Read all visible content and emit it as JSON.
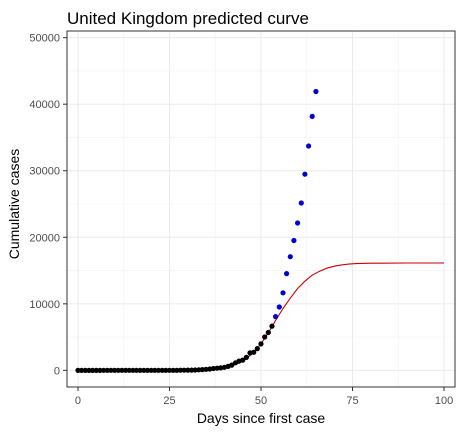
{
  "chart_data": {
    "type": "scatter",
    "title": "United Kingdom predicted curve",
    "xlabel": "Days since first case",
    "ylabel": "Cumulative cases",
    "xlim": [
      -3,
      103
    ],
    "ylim": [
      -2500,
      51000
    ],
    "x_ticks": [
      0,
      25,
      50,
      75,
      100
    ],
    "x_tick_labels": [
      "0",
      "25",
      "50",
      "75",
      "100"
    ],
    "y_ticks": [
      0,
      10000,
      20000,
      30000,
      40000,
      50000
    ],
    "y_tick_labels": [
      "0",
      "10000",
      "20000",
      "30000",
      "40000",
      "50000"
    ],
    "grid": true,
    "legend": "none",
    "series": [
      {
        "role": "observed",
        "color": "#000000",
        "x": [
          0,
          1,
          2,
          3,
          4,
          5,
          6,
          7,
          8,
          9,
          10,
          11,
          12,
          13,
          14,
          15,
          16,
          17,
          18,
          19,
          20,
          21,
          22,
          23,
          24,
          25,
          26,
          27,
          28,
          29,
          30,
          31,
          32,
          33,
          34,
          35,
          36,
          37,
          38,
          39,
          40,
          41,
          42,
          43,
          44,
          45,
          46,
          47,
          48,
          49,
          50,
          51,
          52,
          53
        ],
        "y": [
          2,
          2,
          2,
          2,
          2,
          2,
          2,
          3,
          3,
          3,
          3,
          8,
          8,
          9,
          9,
          9,
          9,
          9,
          9,
          9,
          9,
          9,
          9,
          9,
          13,
          13,
          13,
          15,
          20,
          23,
          36,
          40,
          51,
          85,
          115,
          163,
          206,
          273,
          321,
          373,
          456,
          590,
          798,
          1140,
          1391,
          1543,
          1950,
          2630,
          2716,
          3277,
          3983,
          5018,
          5683,
          6650
        ]
      },
      {
        "role": "predicted",
        "color": "#0000cc",
        "x": [
          54,
          55,
          56,
          57,
          58,
          59,
          60,
          61,
          62,
          63,
          64,
          65
        ],
        "y": [
          8077,
          9529,
          11658,
          14543,
          17089,
          19522,
          22141,
          25150,
          29474,
          33718,
          38168,
          41903
        ]
      }
    ],
    "fitted_curve": {
      "color": "#cc0000",
      "x": [
        0,
        5,
        10,
        15,
        20,
        25,
        30,
        35,
        38,
        40,
        42,
        44,
        46,
        48,
        50,
        52,
        54,
        56,
        58,
        60,
        62,
        64,
        66,
        68,
        70,
        72,
        74,
        76,
        80,
        90,
        100
      ],
      "y": [
        0,
        0,
        0,
        0,
        0,
        5,
        30,
        120,
        260,
        420,
        680,
        1100,
        1750,
        2700,
        4000,
        5650,
        7500,
        9300,
        10850,
        12300,
        13400,
        14300,
        14900,
        15350,
        15650,
        15850,
        15970,
        16050,
        16100,
        16130,
        16140
      ]
    }
  }
}
